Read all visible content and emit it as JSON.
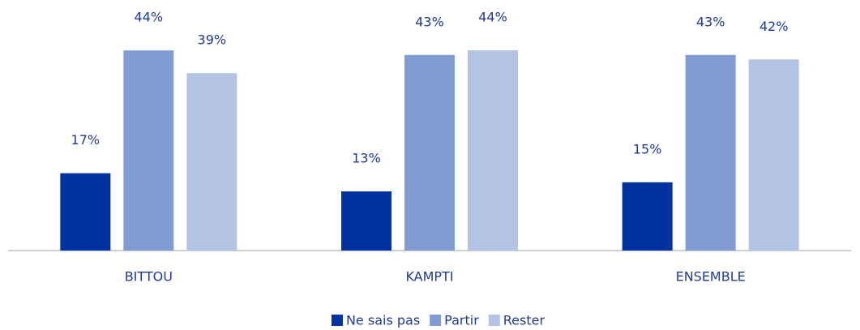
{
  "chart_data": {
    "type": "bar",
    "categories": [
      "BITTOU",
      "KAMPTI",
      "ENSEMBLE"
    ],
    "series": [
      {
        "name": "Ne sais pas",
        "color": "#0033a0",
        "values": [
          17,
          13,
          15
        ],
        "value_labels": [
          "17%",
          "13%",
          "15%"
        ]
      },
      {
        "name": "Partir",
        "color": "#819cd2",
        "values": [
          44,
          43,
          43
        ],
        "value_labels": [
          "44%",
          "43%",
          "43%"
        ]
      },
      {
        "name": "Rester",
        "color": "#b3c3e4",
        "values": [
          39,
          44,
          42
        ],
        "value_labels": [
          "39%",
          "44%",
          "42%"
        ]
      }
    ],
    "legend": "bottom"
  }
}
